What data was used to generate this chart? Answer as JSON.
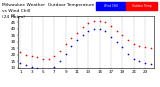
{
  "title": "Milwaukee Weather  Outdoor Temperature",
  "title2": "vs Wind Chill",
  "title3": "(24 Hours)",
  "background_color": "#ffffff",
  "plot_bg_color": "#ffffff",
  "grid_color": "#aaaaaa",
  "temp_color": "#ff0000",
  "windchill_color": "#0000ff",
  "legend_temp_label": "Outdoor Temp",
  "legend_wc_label": "Wind Chill",
  "hours": [
    1,
    2,
    3,
    4,
    5,
    6,
    7,
    8,
    9,
    10,
    11,
    12,
    13,
    14,
    15,
    16,
    17,
    18,
    19,
    20,
    21,
    22,
    23,
    24
  ],
  "temp": [
    22,
    20,
    19,
    18,
    17,
    17,
    19,
    23,
    28,
    33,
    37,
    41,
    44,
    46,
    46,
    45,
    42,
    38,
    35,
    31,
    28,
    27,
    26,
    25
  ],
  "windchill": [
    14,
    12,
    11,
    10,
    9,
    9,
    11,
    15,
    21,
    27,
    31,
    35,
    38,
    40,
    40,
    38,
    34,
    30,
    26,
    21,
    17,
    15,
    14,
    13
  ],
  "ylim": [
    10,
    50
  ],
  "xlim": [
    0.5,
    24.5
  ],
  "yticks": [
    10,
    15,
    20,
    25,
    30,
    35,
    40,
    45,
    50
  ],
  "xticks": [
    1,
    3,
    5,
    7,
    9,
    11,
    13,
    15,
    17,
    19,
    21,
    23
  ],
  "xtick_labels": [
    "1",
    "3",
    "5",
    "7",
    "9",
    "11",
    "13",
    "15",
    "17",
    "19",
    "21",
    "23"
  ],
  "ytick_labels": [
    "10",
    "15",
    "20",
    "25",
    "30",
    "35",
    "40",
    "45",
    "50"
  ],
  "title_fontsize": 3.2,
  "tick_fontsize": 3.0,
  "dot_size": 1.5
}
